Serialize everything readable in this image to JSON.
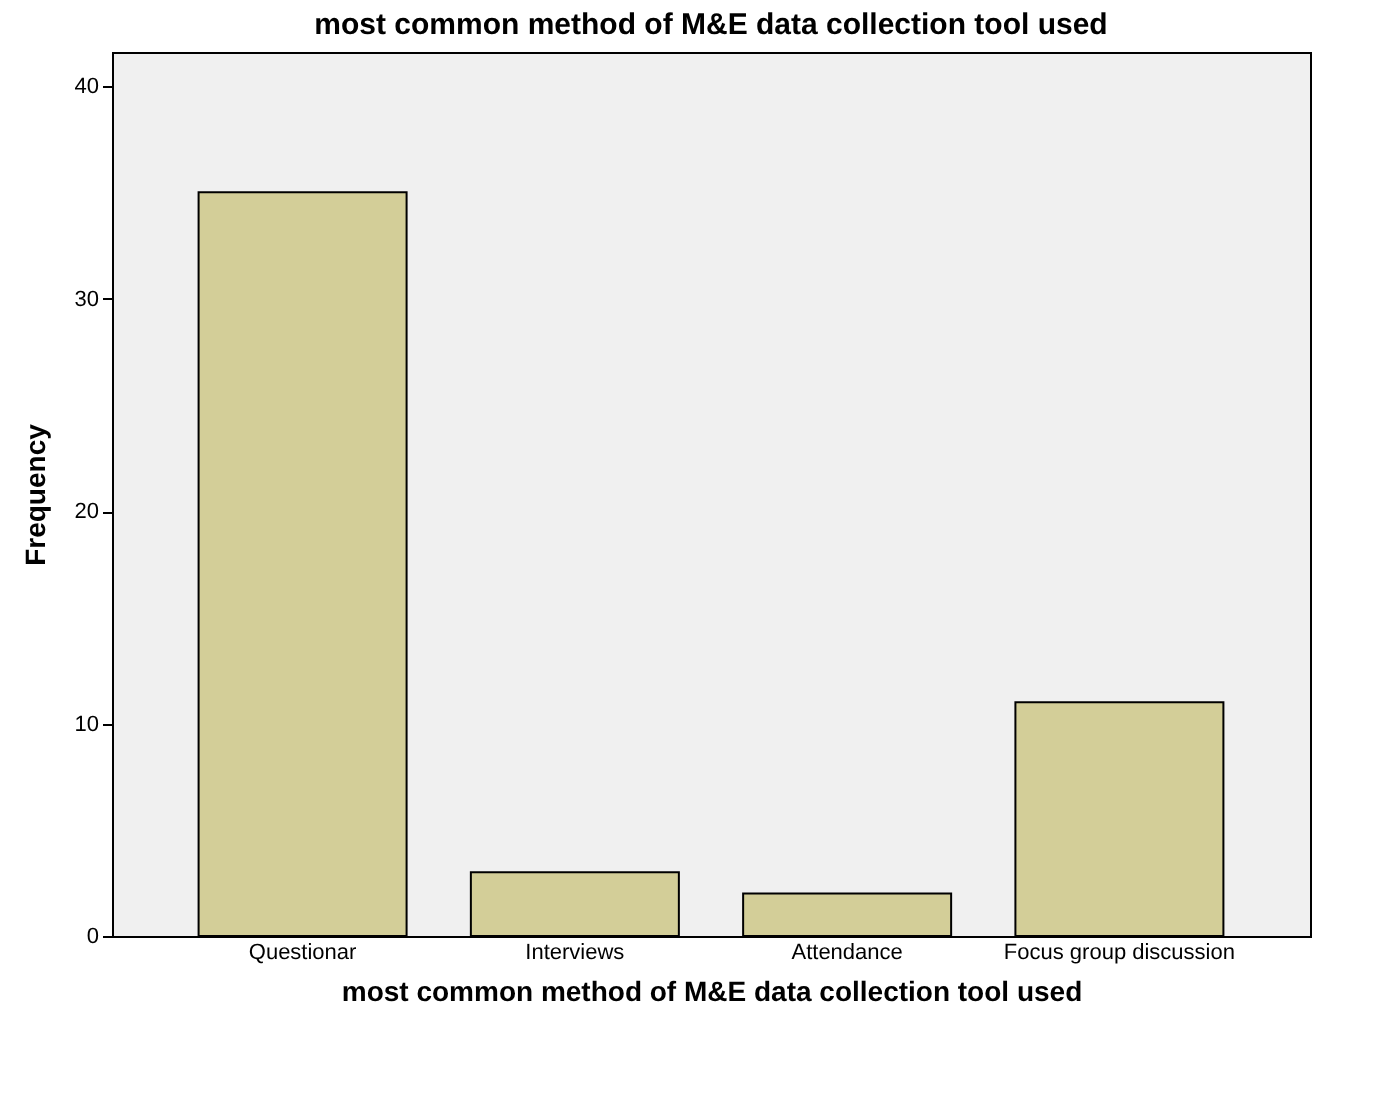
{
  "chart_data": {
    "type": "bar",
    "title": "most common method of M&E data collection tool used",
    "xlabel": "most common method of M&E data collection tool used",
    "ylabel": "Frequency",
    "categories": [
      "Questionar",
      "Interviews",
      "Attendance",
      "Focus group discussion"
    ],
    "values": [
      35,
      3,
      2,
      11
    ],
    "color": "#d3ce98",
    "ylim": [
      0,
      41.6
    ],
    "yticks": [
      0,
      10,
      20,
      30,
      40
    ],
    "grid": false
  }
}
